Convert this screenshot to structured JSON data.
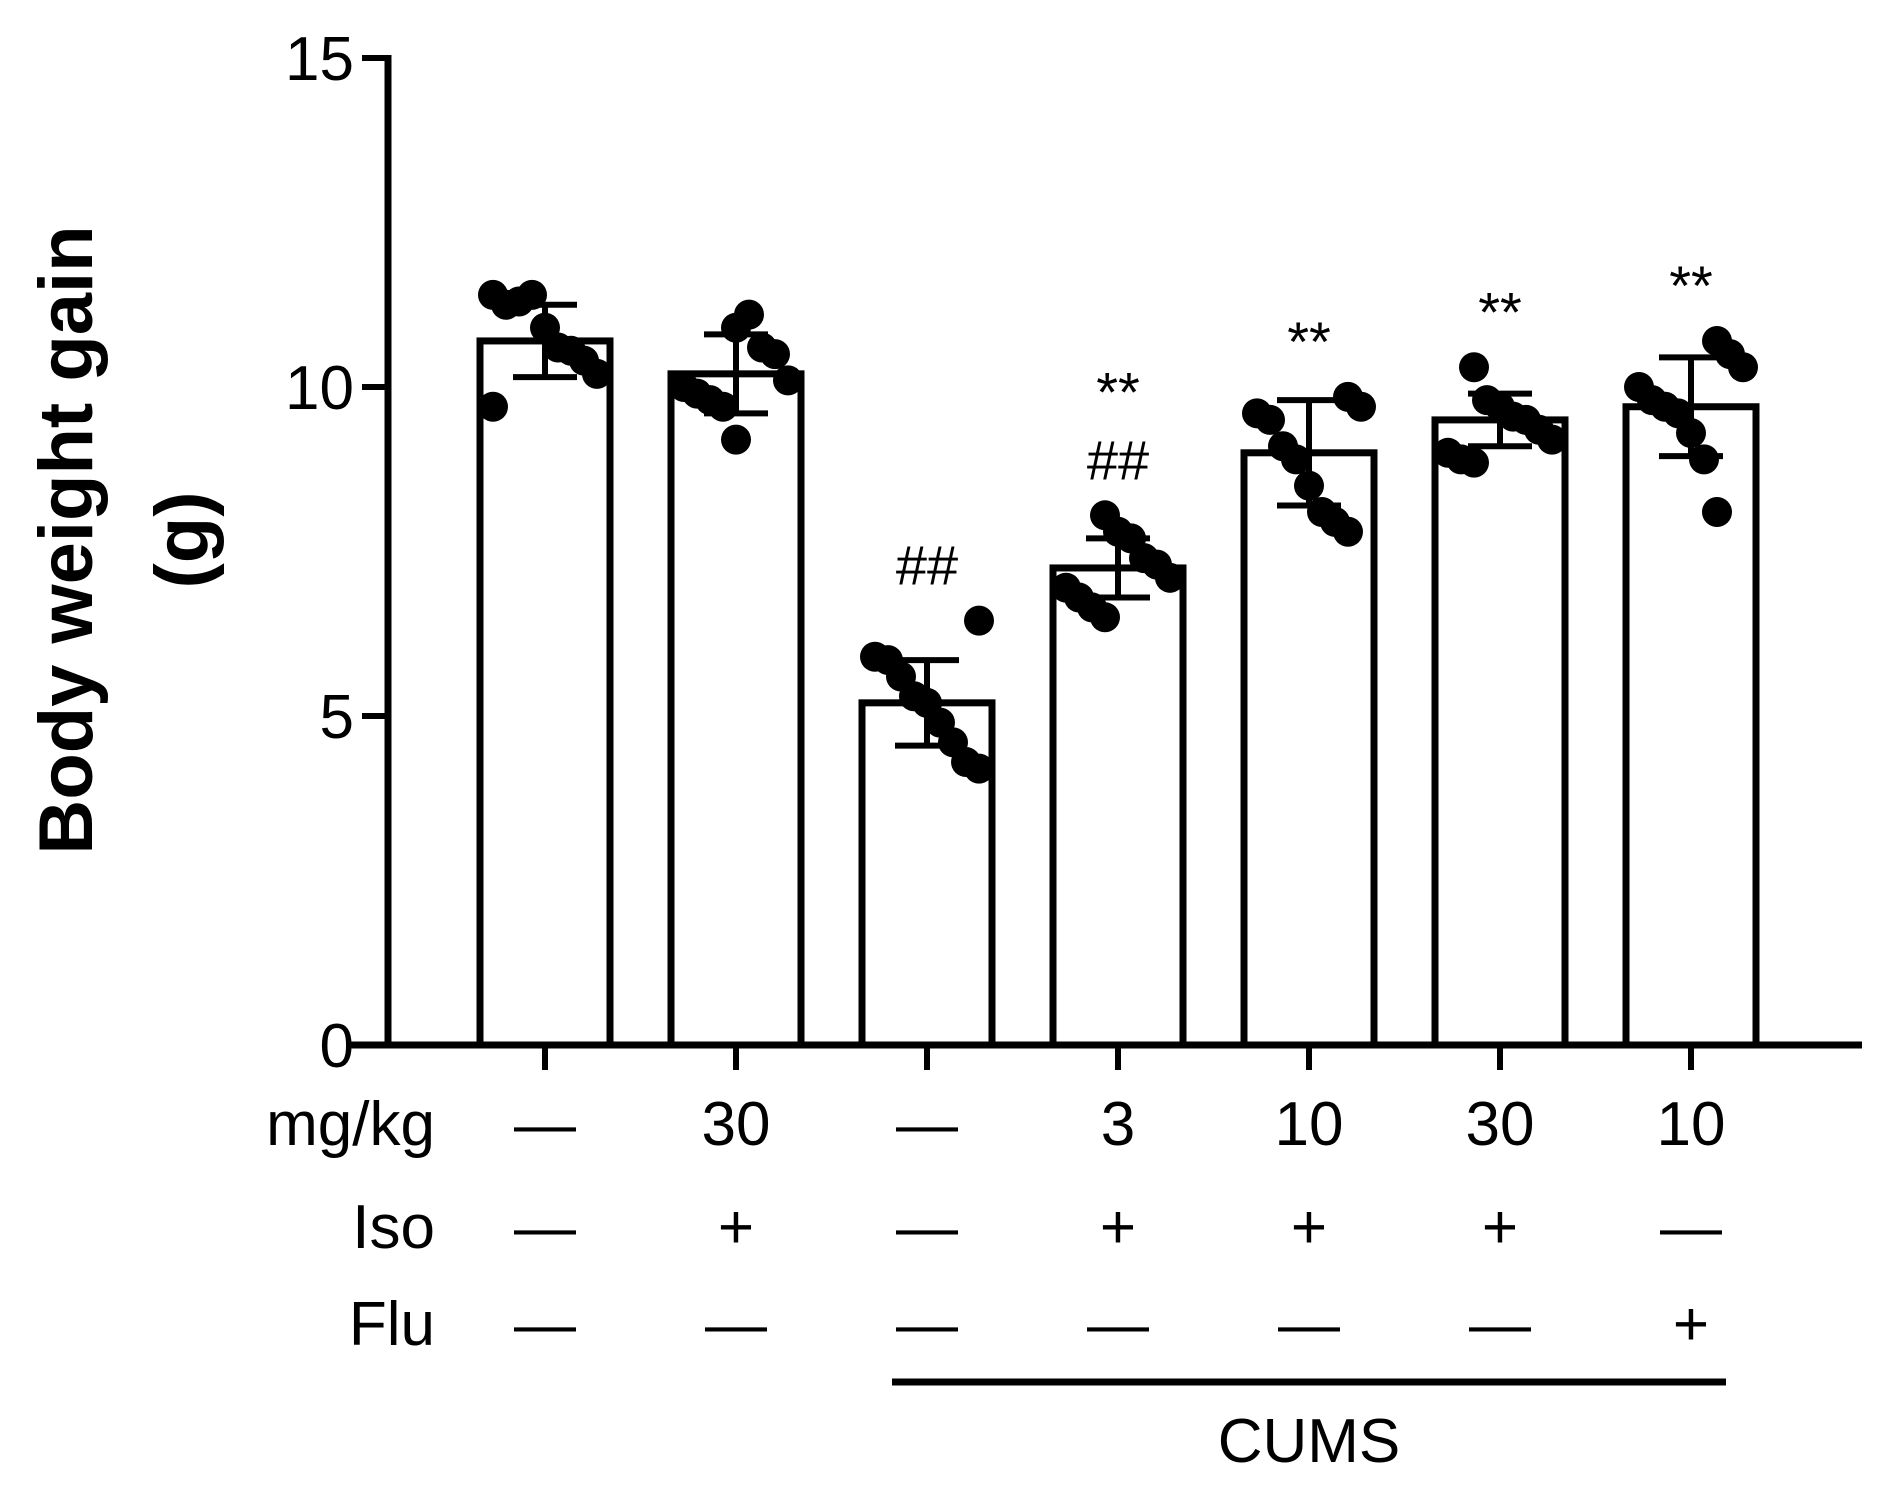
{
  "chart_data": {
    "type": "bar",
    "ylabel": "Body weight gain",
    "ylabel_unit": "(g)",
    "ylim": [
      0,
      15
    ],
    "yticks": [
      0,
      5,
      10,
      15
    ],
    "bar_fill": "#ffffff",
    "stroke_color": "#000000",
    "groups": [
      {
        "mean": 10.7,
        "sd": 0.55,
        "points": [
          11.4,
          11.25,
          11.3,
          11.4,
          10.9,
          10.6,
          10.55,
          10.4,
          10.2,
          9.7
        ],
        "sig": []
      },
      {
        "mean": 10.2,
        "sd": 0.6,
        "points": [
          10.9,
          11.1,
          10.6,
          10.5,
          10.1,
          10.0,
          9.9,
          9.8,
          9.7,
          9.2
        ],
        "sig": []
      },
      {
        "mean": 5.2,
        "sd": 0.65,
        "points": [
          6.45,
          5.9,
          5.85,
          5.6,
          5.3,
          5.2,
          4.9,
          4.6,
          4.3,
          4.2
        ],
        "sig": [
          "##"
        ]
      },
      {
        "mean": 7.25,
        "sd": 0.45,
        "points": [
          8.05,
          7.8,
          7.7,
          7.4,
          7.3,
          7.1,
          6.95,
          6.8,
          6.65,
          6.5
        ],
        "sig": [
          "##",
          "**"
        ]
      },
      {
        "mean": 9.0,
        "sd": 0.8,
        "points": [
          9.85,
          9.7,
          9.6,
          9.5,
          9.1,
          8.9,
          8.5,
          8.1,
          7.95,
          7.8
        ],
        "sig": [
          "**"
        ]
      },
      {
        "mean": 9.5,
        "sd": 0.4,
        "points": [
          10.3,
          9.8,
          9.7,
          9.55,
          9.5,
          9.35,
          9.2,
          9.0,
          8.9,
          8.85
        ],
        "sig": [
          "**"
        ]
      },
      {
        "mean": 9.7,
        "sd": 0.75,
        "points": [
          10.7,
          10.5,
          10.3,
          10.0,
          9.8,
          9.7,
          9.6,
          9.3,
          8.9,
          8.1
        ],
        "sig": [
          "**"
        ]
      }
    ],
    "table": {
      "rows": [
        {
          "label": "mg/kg",
          "values": [
            "—",
            "30",
            "—",
            "3",
            "10",
            "30",
            "10"
          ]
        },
        {
          "label": "Iso",
          "values": [
            "—",
            "+",
            "—",
            "+",
            "+",
            "+",
            "—"
          ]
        },
        {
          "label": "Flu",
          "values": [
            "—",
            "—",
            "—",
            "—",
            "—",
            "—",
            "+"
          ]
        }
      ]
    },
    "group_bracket": {
      "label": "CUMS",
      "from_group": 2,
      "to_group": 6
    }
  }
}
